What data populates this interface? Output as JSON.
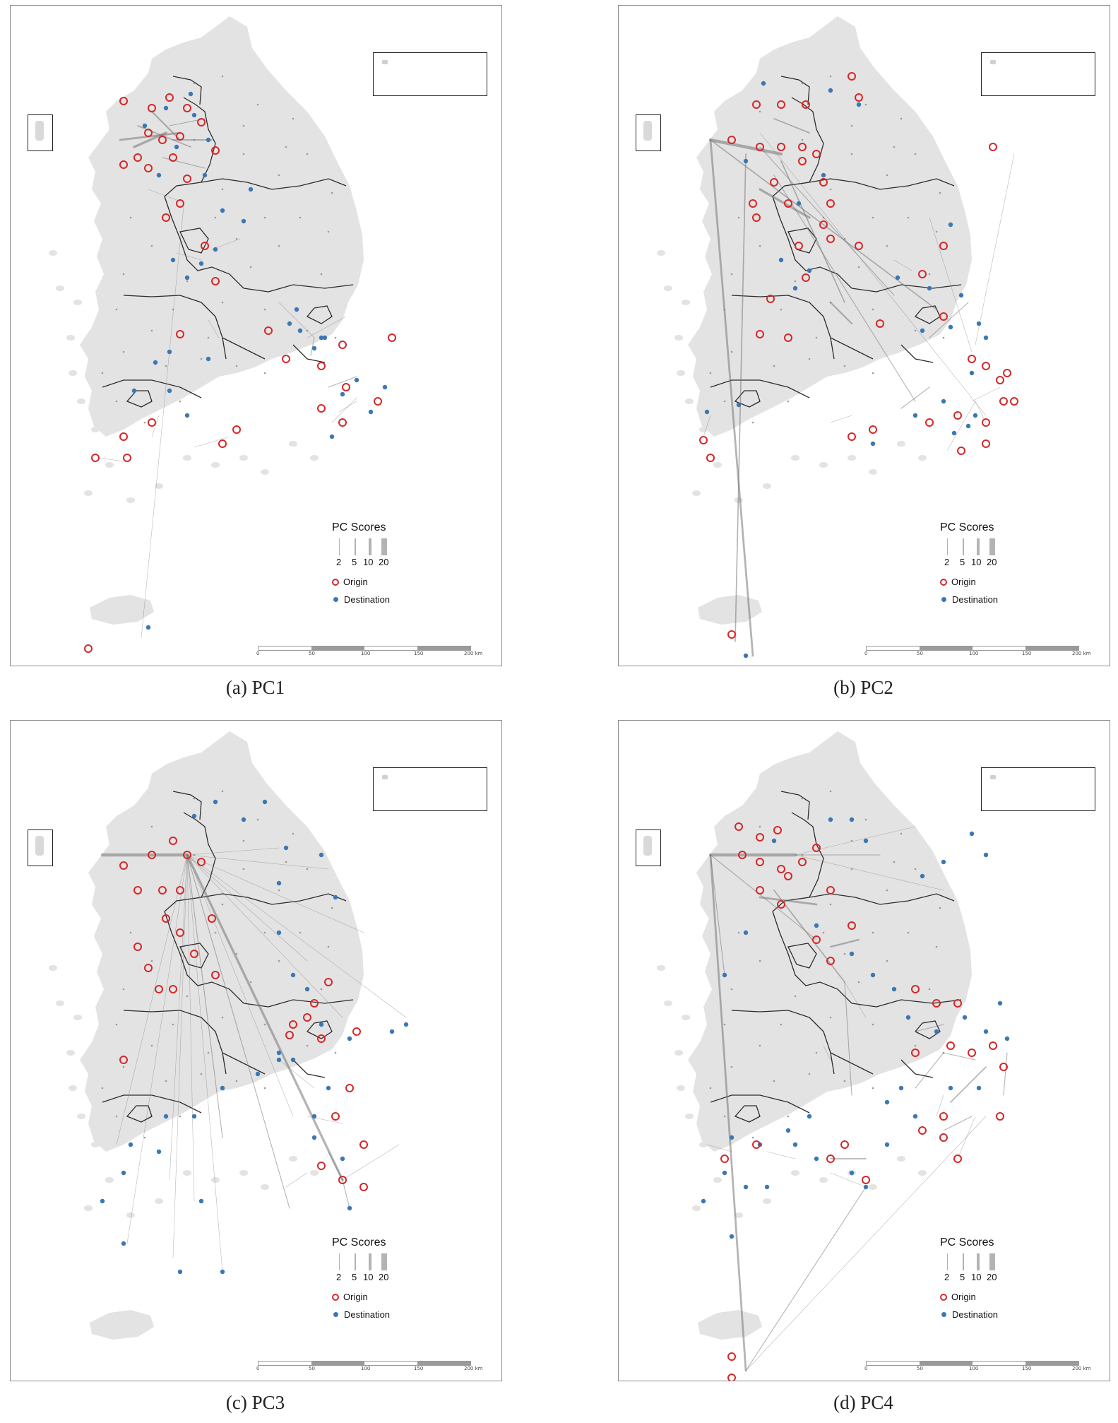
{
  "colors": {
    "land": "#e3e3e3",
    "province_border": "#2b2b2b",
    "flow": "#777777",
    "origin": "#d62728",
    "destination": "#3b78b3",
    "seat": "#9a9a9a"
  },
  "legend": {
    "title": "PC Scores",
    "width_ticks": [
      "2",
      "5",
      "10",
      "20"
    ],
    "origin_label": "Origin",
    "destination_label": "Destination"
  },
  "scale": {
    "labels": [
      "0",
      "50",
      "100",
      "150",
      "200 km"
    ]
  },
  "panels": [
    {
      "caption": "(a)  PC1"
    },
    {
      "caption": "(b)  PC2"
    },
    {
      "caption": "(c)  PC3"
    },
    {
      "caption": "(d)  PC4"
    }
  ]
}
